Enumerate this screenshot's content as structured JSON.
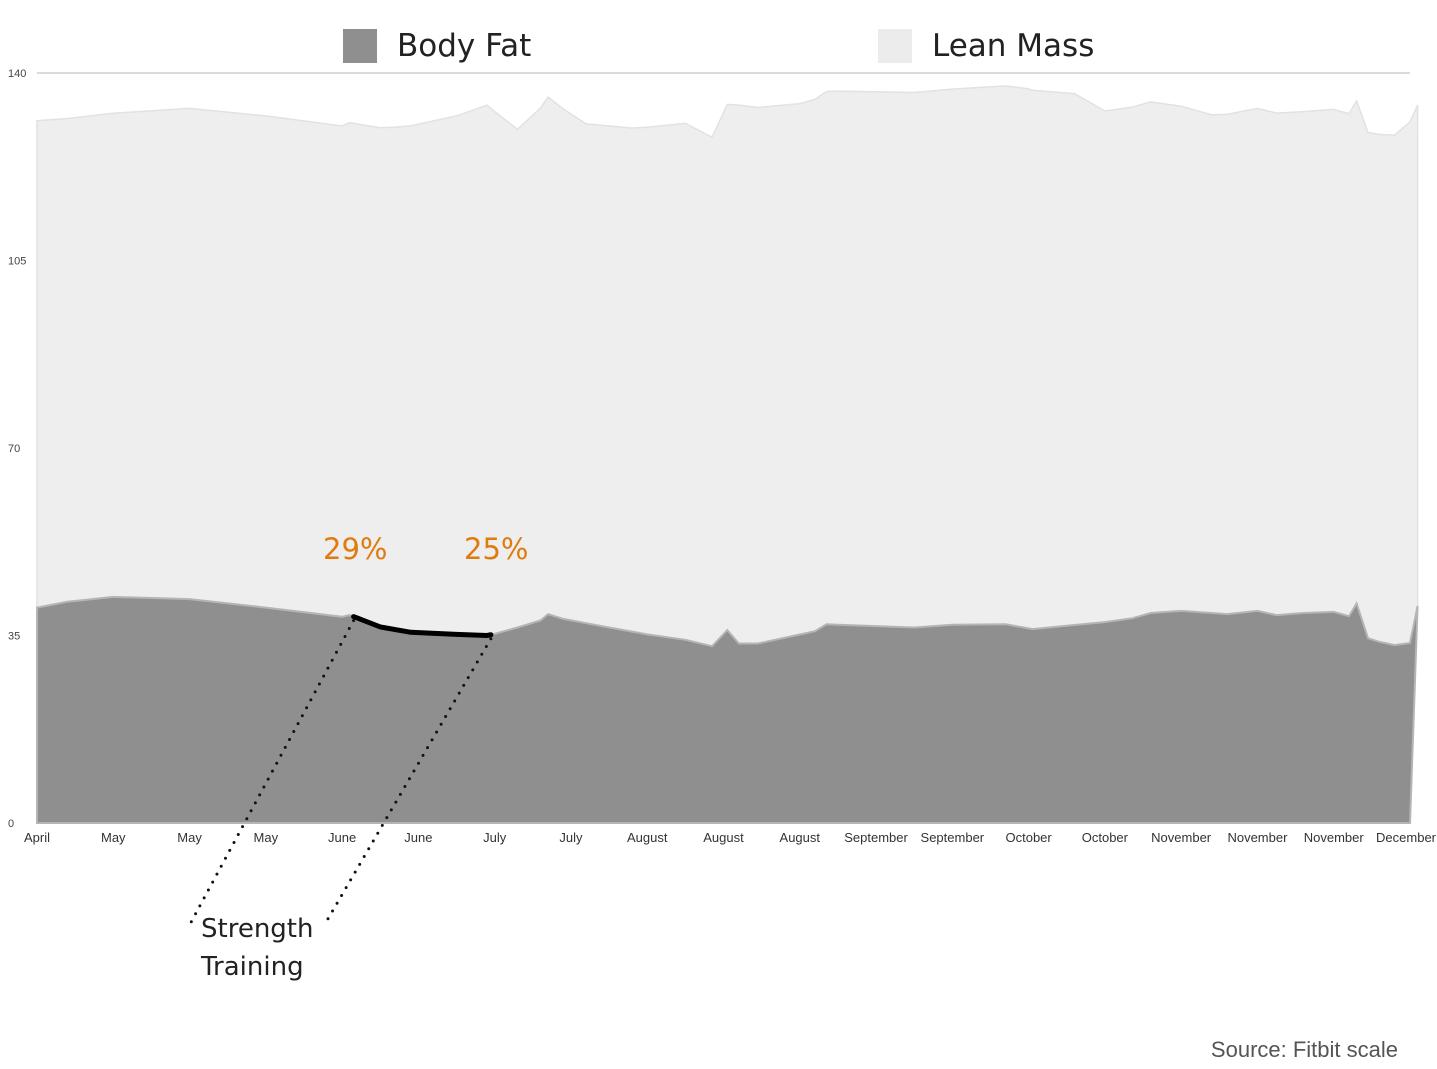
{
  "legend": {
    "body_fat": "Body Fat",
    "lean_mass": "Lean Mass"
  },
  "annotations": {
    "start_pct": "29%",
    "end_pct": "25%",
    "callout_line1": "Strength",
    "callout_line2": "Training"
  },
  "source": "Source: Fitbit scale",
  "colors": {
    "body_fat": "#8f8f8f",
    "lean_mass": "#eeeeee",
    "annotation": "#e07b10"
  },
  "chart_data": {
    "type": "area",
    "stacked": true,
    "legend_placement": "top",
    "ylim": [
      0,
      140
    ],
    "y_ticks": [
      0,
      35,
      70,
      105,
      140
    ],
    "x_tick_labels": [
      "April",
      "May",
      "May",
      "May",
      "June",
      "June",
      "July",
      "July",
      "August",
      "August",
      "August",
      "September",
      "September",
      "October",
      "October",
      "November",
      "November",
      "November",
      "December"
    ],
    "x_range": [
      0,
      18
    ],
    "series": [
      {
        "name": "Body Fat",
        "points": [
          [
            0,
            40.2
          ],
          [
            0.4,
            41.3
          ],
          [
            1,
            42.2
          ],
          [
            2,
            41.8
          ],
          [
            3,
            40.2
          ],
          [
            4,
            38.5
          ],
          [
            4.1,
            38.8
          ],
          [
            4.5,
            36.6
          ],
          [
            4.9,
            35.6
          ],
          [
            5.5,
            35.2
          ],
          [
            5.9,
            35.0
          ],
          [
            6.0,
            35.3
          ],
          [
            6.3,
            36.5
          ],
          [
            6.6,
            37.8
          ],
          [
            6.7,
            39.0
          ],
          [
            6.9,
            38.1
          ],
          [
            7.5,
            36.5
          ],
          [
            8.0,
            35.2
          ],
          [
            8.5,
            34.2
          ],
          [
            8.85,
            33.0
          ],
          [
            9.05,
            36.0
          ],
          [
            9.2,
            33.5
          ],
          [
            9.45,
            33.5
          ],
          [
            10.2,
            35.8
          ],
          [
            10.35,
            37.1
          ],
          [
            11.5,
            36.5
          ],
          [
            12,
            37.0
          ],
          [
            12.7,
            37.1
          ],
          [
            13.05,
            36.2
          ],
          [
            14,
            37.5
          ],
          [
            14.35,
            38.2
          ],
          [
            14.6,
            39.2
          ],
          [
            15,
            39.6
          ],
          [
            15.4,
            39.2
          ],
          [
            15.6,
            39.0
          ],
          [
            16,
            39.6
          ],
          [
            16.25,
            38.8
          ],
          [
            16.6,
            39.2
          ],
          [
            17,
            39.4
          ],
          [
            17.2,
            38.6
          ],
          [
            17.3,
            41.0
          ],
          [
            17.45,
            34.5
          ],
          [
            17.6,
            33.8
          ],
          [
            17.8,
            33.2
          ],
          [
            18,
            33.6
          ],
          [
            18.1,
            40.5
          ]
        ]
      },
      {
        "name": "Lean Mass",
        "points": [
          [
            0,
            90.9
          ],
          [
            0.4,
            90.2
          ],
          [
            1,
            90.3
          ],
          [
            2,
            91.6
          ],
          [
            3,
            91.8
          ],
          [
            4,
            91.6
          ],
          [
            4.7,
            93.8
          ],
          [
            5.5,
            96.8
          ],
          [
            5.9,
            99.0
          ],
          [
            6.3,
            93.0
          ],
          [
            6.7,
            96.5
          ],
          [
            7.2,
            93.2
          ],
          [
            7.8,
            94.0
          ],
          [
            8.5,
            96.4
          ],
          [
            8.85,
            95.0
          ],
          [
            9.2,
            100.5
          ],
          [
            10,
            99.1
          ],
          [
            10.5,
            99.6
          ],
          [
            12,
            100.0
          ],
          [
            13,
            100.7
          ],
          [
            13.6,
            99.2
          ],
          [
            14,
            95.4
          ],
          [
            14.6,
            95.4
          ],
          [
            15.4,
            93.0
          ],
          [
            16,
            93.8
          ],
          [
            16.6,
            93.6
          ],
          [
            17,
            93.8
          ],
          [
            17.3,
            93.8
          ],
          [
            17.45,
            94.4
          ],
          [
            17.8,
            95.2
          ],
          [
            18,
            97.3
          ],
          [
            18.1,
            93.5
          ]
        ]
      }
    ],
    "annotation_range": [
      4.15,
      5.95
    ]
  }
}
